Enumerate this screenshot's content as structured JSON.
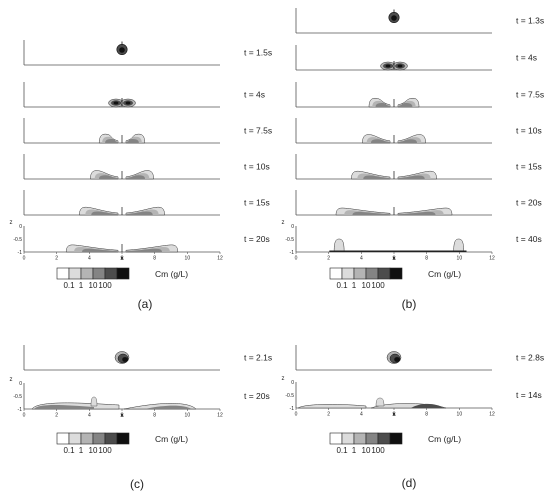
{
  "figure": {
    "panels": [
      {
        "label": "(a)",
        "frames": [
          {
            "time": "t = 1.5s",
            "stage": "drop"
          },
          {
            "time": "t = 4s",
            "stage": "early"
          },
          {
            "time": "t = 7.5s",
            "stage": "spread",
            "extent": 0.9
          },
          {
            "time": "t = 10s",
            "stage": "spread",
            "extent": 1.3
          },
          {
            "time": "t = 15s",
            "stage": "spread",
            "extent": 1.8
          },
          {
            "time": "t = 20s",
            "stage": "spread",
            "extent": 2.4
          }
        ]
      },
      {
        "label": "(b)",
        "frames": [
          {
            "time": "t = 1.3s",
            "stage": "drop"
          },
          {
            "time": "t = 4s",
            "stage": "early"
          },
          {
            "time": "t = 7.5s",
            "stage": "spread",
            "extent": 1.0
          },
          {
            "time": "t = 10s",
            "stage": "spread",
            "extent": 1.3
          },
          {
            "time": "t = 15s",
            "stage": "spread",
            "extent": 1.8
          },
          {
            "time": "t = 20s",
            "stage": "spread",
            "extent": 2.5
          },
          {
            "time": "t = 40s",
            "stage": "late"
          }
        ]
      },
      {
        "label": "(c)",
        "frames": [
          {
            "time": "t = 2.1s",
            "stage": "drop-tilt"
          },
          {
            "time": "t = 20s",
            "stage": "late-c"
          }
        ]
      },
      {
        "label": "(d)",
        "frames": [
          {
            "time": "t = 2.8s",
            "stage": "drop-tilt"
          },
          {
            "time": "t = 14s",
            "stage": "late-d"
          }
        ]
      }
    ],
    "axes": {
      "xlabel": "x",
      "zlabel": "z",
      "x_range": [
        0,
        12
      ],
      "x_ticks": [
        "0",
        "2",
        "4",
        "6",
        "8",
        "10",
        "12"
      ],
      "z_ticks": [
        "0",
        "-0.5",
        "-1"
      ]
    },
    "colorbar": {
      "title": "Cm (g/L)",
      "tick_labels": [
        "0.1",
        "1",
        "10",
        "100"
      ],
      "colors": [
        "#ffffff",
        "#dcdcdc",
        "#b4b4b4",
        "#848484",
        "#4c4c4c",
        "#101010"
      ]
    }
  },
  "chart_data": {
    "type": "heatmap",
    "variable": "Cm (g/L)",
    "colorbar_levels": [
      0.1,
      1,
      10,
      100
    ],
    "xlabel": "x",
    "ylabel": "z",
    "xlim": [
      0,
      12
    ],
    "ylim": [
      -1,
      0
    ],
    "panels": [
      {
        "label": "(a)",
        "times": [
          "t = 1.5s",
          "t = 4s",
          "t = 7.5s",
          "t = 10s",
          "t = 15s",
          "t = 20s"
        ]
      },
      {
        "label": "(b)",
        "times": [
          "t = 1.3s",
          "t = 4s",
          "t = 7.5s",
          "t = 10s",
          "t = 15s",
          "t = 20s",
          "t = 40s"
        ]
      },
      {
        "label": "(c)",
        "times": [
          "t = 2.1s",
          "t = 20s"
        ]
      },
      {
        "label": "(d)",
        "times": [
          "t = 2.8s",
          "t = 14s"
        ]
      }
    ]
  }
}
